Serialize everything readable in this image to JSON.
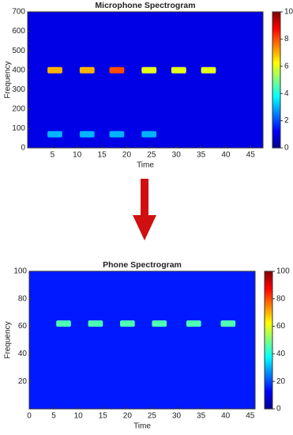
{
  "chart_data": [
    {
      "type": "heatmap",
      "title": "Microphone Spectrogram",
      "xlabel": "Time",
      "ylabel": "Frequency",
      "xlim": [
        0,
        47.5
      ],
      "xticks": [
        5,
        10,
        15,
        20,
        25,
        30,
        35,
        40,
        45
      ],
      "ylim": [
        0,
        700
      ],
      "yticks": [
        0,
        100,
        200,
        300,
        400,
        500,
        600,
        700
      ],
      "clim": [
        0,
        10
      ],
      "cticks": [
        0,
        2,
        4,
        6,
        8,
        10
      ],
      "background": 1,
      "bursts": [
        {
          "t0": 4,
          "t1": 7,
          "f": 400,
          "v": 7
        },
        {
          "t0": 10.5,
          "t1": 13.5,
          "f": 400,
          "v": 7
        },
        {
          "t0": 16.5,
          "t1": 19.5,
          "f": 400,
          "v": 8
        },
        {
          "t0": 23,
          "t1": 26,
          "f": 400,
          "v": 6
        },
        {
          "t0": 29,
          "t1": 32,
          "f": 400,
          "v": 6
        },
        {
          "t0": 35,
          "t1": 38,
          "f": 400,
          "v": 6
        },
        {
          "t0": 4,
          "t1": 7,
          "f": 70,
          "v": 3
        },
        {
          "t0": 10.5,
          "t1": 13.5,
          "f": 70,
          "v": 3
        },
        {
          "t0": 16.5,
          "t1": 19.5,
          "f": 70,
          "v": 3
        },
        {
          "t0": 23,
          "t1": 26,
          "f": 70,
          "v": 3
        }
      ]
    },
    {
      "type": "heatmap",
      "title": "Phone Spectrogram",
      "xlabel": "Time",
      "ylabel": "Frequency",
      "xlim": [
        0,
        46
      ],
      "xticks": [
        0,
        5,
        10,
        15,
        20,
        25,
        30,
        35,
        40,
        45
      ],
      "ylim": [
        0,
        100
      ],
      "yticks": [
        20,
        40,
        60,
        80,
        100
      ],
      "clim": [
        0,
        100
      ],
      "cticks": [
        0,
        20,
        40,
        60,
        80,
        100
      ],
      "background": 15,
      "bursts": [
        {
          "t0": 5.5,
          "t1": 8.5,
          "f": 62,
          "v": 45
        },
        {
          "t0": 12,
          "t1": 15,
          "f": 62,
          "v": 45
        },
        {
          "t0": 18.5,
          "t1": 21.5,
          "f": 62,
          "v": 45
        },
        {
          "t0": 25,
          "t1": 28,
          "f": 62,
          "v": 45
        },
        {
          "t0": 32,
          "t1": 35,
          "f": 62,
          "v": 45
        },
        {
          "t0": 39,
          "t1": 42,
          "f": 62,
          "v": 45
        }
      ]
    }
  ]
}
